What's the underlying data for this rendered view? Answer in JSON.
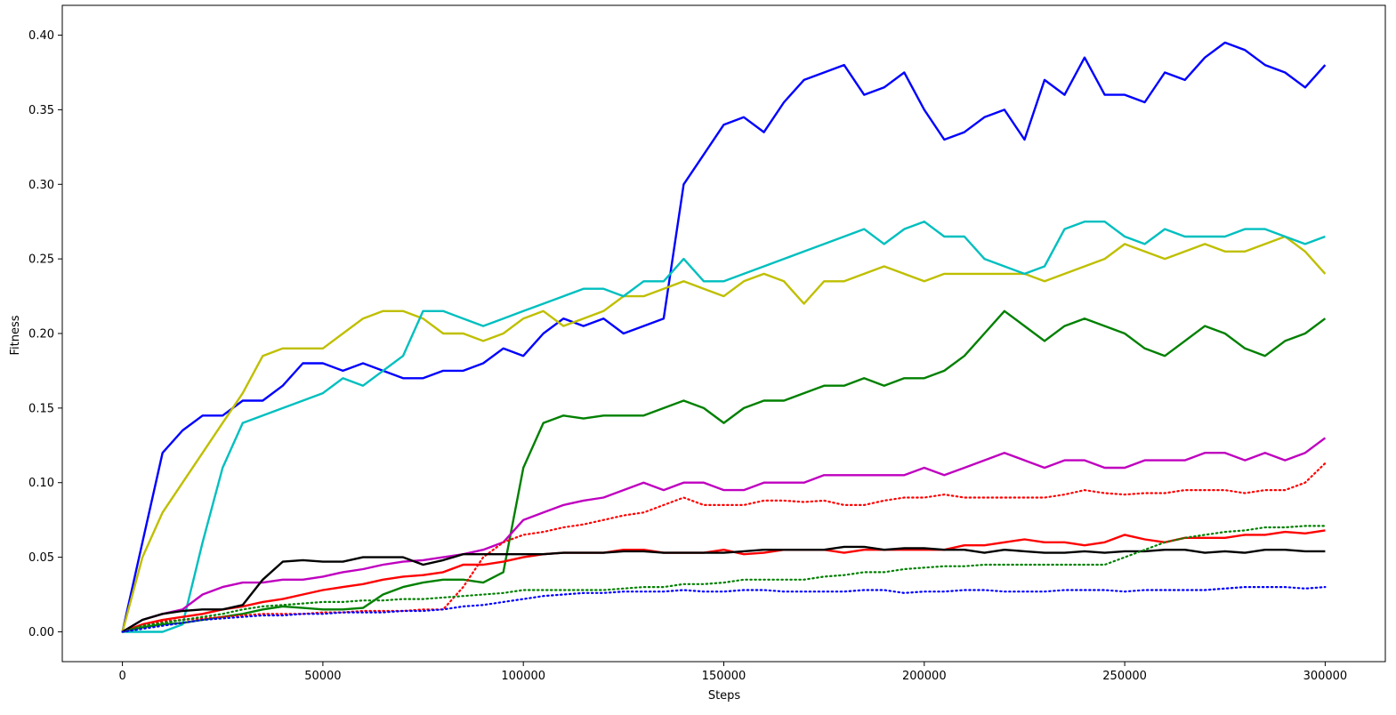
{
  "chart_data": {
    "type": "line",
    "title": "",
    "xlabel": "Steps",
    "ylabel": "Fitness",
    "xlim": [
      -15000,
      315000
    ],
    "ylim": [
      -0.02,
      0.42
    ],
    "x_ticks": [
      0,
      50000,
      100000,
      150000,
      200000,
      250000,
      300000
    ],
    "x_tick_labels": [
      "0",
      "50000",
      "100000",
      "150000",
      "200000",
      "250000",
      "300000"
    ],
    "y_ticks": [
      0.0,
      0.05,
      0.1,
      0.15,
      0.2,
      0.25,
      0.3,
      0.35,
      0.4
    ],
    "y_tick_labels": [
      "0.00",
      "0.05",
      "0.10",
      "0.15",
      "0.20",
      "0.25",
      "0.30",
      "0.35",
      "0.40"
    ],
    "grid": false,
    "legend": "none",
    "x": [
      0,
      5000,
      10000,
      15000,
      20000,
      25000,
      30000,
      35000,
      40000,
      45000,
      50000,
      55000,
      60000,
      65000,
      70000,
      75000,
      80000,
      85000,
      90000,
      95000,
      100000,
      105000,
      110000,
      115000,
      120000,
      125000,
      130000,
      135000,
      140000,
      145000,
      150000,
      155000,
      160000,
      165000,
      170000,
      175000,
      180000,
      185000,
      190000,
      195000,
      200000,
      205000,
      210000,
      215000,
      220000,
      225000,
      230000,
      235000,
      240000,
      245000,
      250000,
      255000,
      260000,
      265000,
      270000,
      275000,
      280000,
      285000,
      290000,
      295000,
      300000
    ],
    "series": [
      {
        "color": "#0000ff",
        "style": "solid",
        "values": [
          0.0,
          0.06,
          0.12,
          0.135,
          0.145,
          0.145,
          0.155,
          0.155,
          0.165,
          0.18,
          0.18,
          0.175,
          0.18,
          0.175,
          0.17,
          0.17,
          0.175,
          0.175,
          0.18,
          0.19,
          0.185,
          0.2,
          0.21,
          0.205,
          0.21,
          0.2,
          0.205,
          0.21,
          0.3,
          0.32,
          0.34,
          0.345,
          0.335,
          0.355,
          0.37,
          0.375,
          0.38,
          0.36,
          0.365,
          0.375,
          0.35,
          0.33,
          0.335,
          0.345,
          0.35,
          0.33,
          0.37,
          0.36,
          0.385,
          0.36,
          0.36,
          0.355,
          0.375,
          0.37,
          0.385,
          0.395,
          0.39,
          0.38,
          0.375,
          0.365,
          0.38
        ]
      },
      {
        "color": "#bfbf00",
        "style": "solid",
        "values": [
          0.0,
          0.05,
          0.08,
          0.1,
          0.12,
          0.14,
          0.16,
          0.185,
          0.19,
          0.19,
          0.19,
          0.2,
          0.21,
          0.215,
          0.215,
          0.21,
          0.2,
          0.2,
          0.195,
          0.2,
          0.21,
          0.215,
          0.205,
          0.21,
          0.215,
          0.225,
          0.225,
          0.23,
          0.235,
          0.23,
          0.225,
          0.235,
          0.24,
          0.235,
          0.22,
          0.235,
          0.235,
          0.24,
          0.245,
          0.24,
          0.235,
          0.24,
          0.24,
          0.24,
          0.24,
          0.24,
          0.235,
          0.24,
          0.245,
          0.25,
          0.26,
          0.255,
          0.25,
          0.255,
          0.26,
          0.255,
          0.255,
          0.26,
          0.265,
          0.255,
          0.24
        ]
      },
      {
        "color": "#00bfbf",
        "style": "solid",
        "values": [
          0.0,
          0.0,
          0.0,
          0.005,
          0.06,
          0.11,
          0.14,
          0.145,
          0.15,
          0.155,
          0.16,
          0.17,
          0.165,
          0.175,
          0.185,
          0.215,
          0.215,
          0.21,
          0.205,
          0.21,
          0.215,
          0.22,
          0.225,
          0.23,
          0.23,
          0.225,
          0.235,
          0.235,
          0.25,
          0.235,
          0.235,
          0.24,
          0.245,
          0.25,
          0.255,
          0.26,
          0.265,
          0.27,
          0.26,
          0.27,
          0.275,
          0.265,
          0.265,
          0.25,
          0.245,
          0.24,
          0.245,
          0.27,
          0.275,
          0.275,
          0.265,
          0.26,
          0.27,
          0.265,
          0.265,
          0.265,
          0.27,
          0.27,
          0.265,
          0.26,
          0.265
        ]
      },
      {
        "color": "#008000",
        "style": "solid",
        "values": [
          0.0,
          0.003,
          0.005,
          0.006,
          0.008,
          0.01,
          0.012,
          0.015,
          0.017,
          0.016,
          0.015,
          0.015,
          0.016,
          0.025,
          0.03,
          0.033,
          0.035,
          0.035,
          0.033,
          0.04,
          0.11,
          0.14,
          0.145,
          0.143,
          0.145,
          0.145,
          0.145,
          0.15,
          0.155,
          0.15,
          0.14,
          0.15,
          0.155,
          0.155,
          0.16,
          0.165,
          0.165,
          0.17,
          0.165,
          0.17,
          0.17,
          0.175,
          0.185,
          0.2,
          0.215,
          0.205,
          0.195,
          0.205,
          0.21,
          0.205,
          0.2,
          0.19,
          0.185,
          0.195,
          0.205,
          0.2,
          0.19,
          0.185,
          0.195,
          0.2,
          0.21
        ]
      },
      {
        "color": "#bf00bf",
        "style": "solid",
        "values": [
          0.0,
          0.008,
          0.012,
          0.015,
          0.025,
          0.03,
          0.033,
          0.033,
          0.035,
          0.035,
          0.037,
          0.04,
          0.042,
          0.045,
          0.047,
          0.048,
          0.05,
          0.052,
          0.055,
          0.06,
          0.075,
          0.08,
          0.085,
          0.088,
          0.09,
          0.095,
          0.1,
          0.095,
          0.1,
          0.1,
          0.095,
          0.095,
          0.1,
          0.1,
          0.1,
          0.105,
          0.105,
          0.105,
          0.105,
          0.105,
          0.11,
          0.105,
          0.11,
          0.115,
          0.12,
          0.115,
          0.11,
          0.115,
          0.115,
          0.11,
          0.11,
          0.115,
          0.115,
          0.115,
          0.12,
          0.12,
          0.115,
          0.12,
          0.115,
          0.12,
          0.13
        ]
      },
      {
        "color": "#ff0000",
        "style": "dotted",
        "values": [
          0.0,
          0.005,
          0.007,
          0.008,
          0.009,
          0.01,
          0.011,
          0.012,
          0.012,
          0.012,
          0.013,
          0.013,
          0.014,
          0.014,
          0.014,
          0.015,
          0.015,
          0.03,
          0.05,
          0.06,
          0.065,
          0.067,
          0.07,
          0.072,
          0.075,
          0.078,
          0.08,
          0.085,
          0.09,
          0.085,
          0.085,
          0.085,
          0.088,
          0.088,
          0.087,
          0.088,
          0.085,
          0.085,
          0.088,
          0.09,
          0.09,
          0.092,
          0.09,
          0.09,
          0.09,
          0.09,
          0.09,
          0.092,
          0.095,
          0.093,
          0.092,
          0.093,
          0.093,
          0.095,
          0.095,
          0.095,
          0.093,
          0.095,
          0.095,
          0.1,
          0.113
        ]
      },
      {
        "color": "#ff0000",
        "style": "solid",
        "values": [
          0.0,
          0.005,
          0.008,
          0.01,
          0.012,
          0.015,
          0.017,
          0.02,
          0.022,
          0.025,
          0.028,
          0.03,
          0.032,
          0.035,
          0.037,
          0.038,
          0.04,
          0.045,
          0.045,
          0.047,
          0.05,
          0.052,
          0.053,
          0.053,
          0.053,
          0.055,
          0.055,
          0.053,
          0.053,
          0.053,
          0.055,
          0.052,
          0.053,
          0.055,
          0.055,
          0.055,
          0.053,
          0.055,
          0.055,
          0.055,
          0.055,
          0.055,
          0.058,
          0.058,
          0.06,
          0.062,
          0.06,
          0.06,
          0.058,
          0.06,
          0.065,
          0.062,
          0.06,
          0.063,
          0.063,
          0.063,
          0.065,
          0.065,
          0.067,
          0.066,
          0.068
        ]
      },
      {
        "color": "#000000",
        "style": "solid",
        "values": [
          0.0,
          0.008,
          0.012,
          0.014,
          0.015,
          0.015,
          0.018,
          0.035,
          0.047,
          0.048,
          0.047,
          0.047,
          0.05,
          0.05,
          0.05,
          0.045,
          0.048,
          0.052,
          0.052,
          0.052,
          0.052,
          0.052,
          0.053,
          0.053,
          0.053,
          0.054,
          0.054,
          0.053,
          0.053,
          0.053,
          0.053,
          0.054,
          0.055,
          0.055,
          0.055,
          0.055,
          0.057,
          0.057,
          0.055,
          0.056,
          0.056,
          0.055,
          0.055,
          0.053,
          0.055,
          0.054,
          0.053,
          0.053,
          0.054,
          0.053,
          0.054,
          0.054,
          0.055,
          0.055,
          0.053,
          0.054,
          0.053,
          0.055,
          0.055,
          0.054,
          0.054
        ]
      },
      {
        "color": "#008000",
        "style": "dotted",
        "values": [
          0.0,
          0.004,
          0.006,
          0.008,
          0.01,
          0.012,
          0.015,
          0.017,
          0.018,
          0.019,
          0.02,
          0.02,
          0.021,
          0.021,
          0.022,
          0.022,
          0.023,
          0.024,
          0.025,
          0.026,
          0.028,
          0.028,
          0.028,
          0.028,
          0.028,
          0.029,
          0.03,
          0.03,
          0.032,
          0.032,
          0.033,
          0.035,
          0.035,
          0.035,
          0.035,
          0.037,
          0.038,
          0.04,
          0.04,
          0.042,
          0.043,
          0.044,
          0.044,
          0.045,
          0.045,
          0.045,
          0.045,
          0.045,
          0.045,
          0.045,
          0.05,
          0.055,
          0.06,
          0.063,
          0.065,
          0.067,
          0.068,
          0.07,
          0.07,
          0.071,
          0.071
        ]
      },
      {
        "color": "#0000ff",
        "style": "dotted",
        "values": [
          0.0,
          0.002,
          0.004,
          0.006,
          0.008,
          0.009,
          0.01,
          0.011,
          0.011,
          0.012,
          0.012,
          0.013,
          0.013,
          0.013,
          0.014,
          0.014,
          0.015,
          0.017,
          0.018,
          0.02,
          0.022,
          0.024,
          0.025,
          0.026,
          0.026,
          0.027,
          0.027,
          0.027,
          0.028,
          0.027,
          0.027,
          0.028,
          0.028,
          0.027,
          0.027,
          0.027,
          0.027,
          0.028,
          0.028,
          0.026,
          0.027,
          0.027,
          0.028,
          0.028,
          0.027,
          0.027,
          0.027,
          0.028,
          0.028,
          0.028,
          0.027,
          0.028,
          0.028,
          0.028,
          0.028,
          0.029,
          0.03,
          0.03,
          0.03,
          0.029,
          0.03
        ]
      }
    ]
  }
}
